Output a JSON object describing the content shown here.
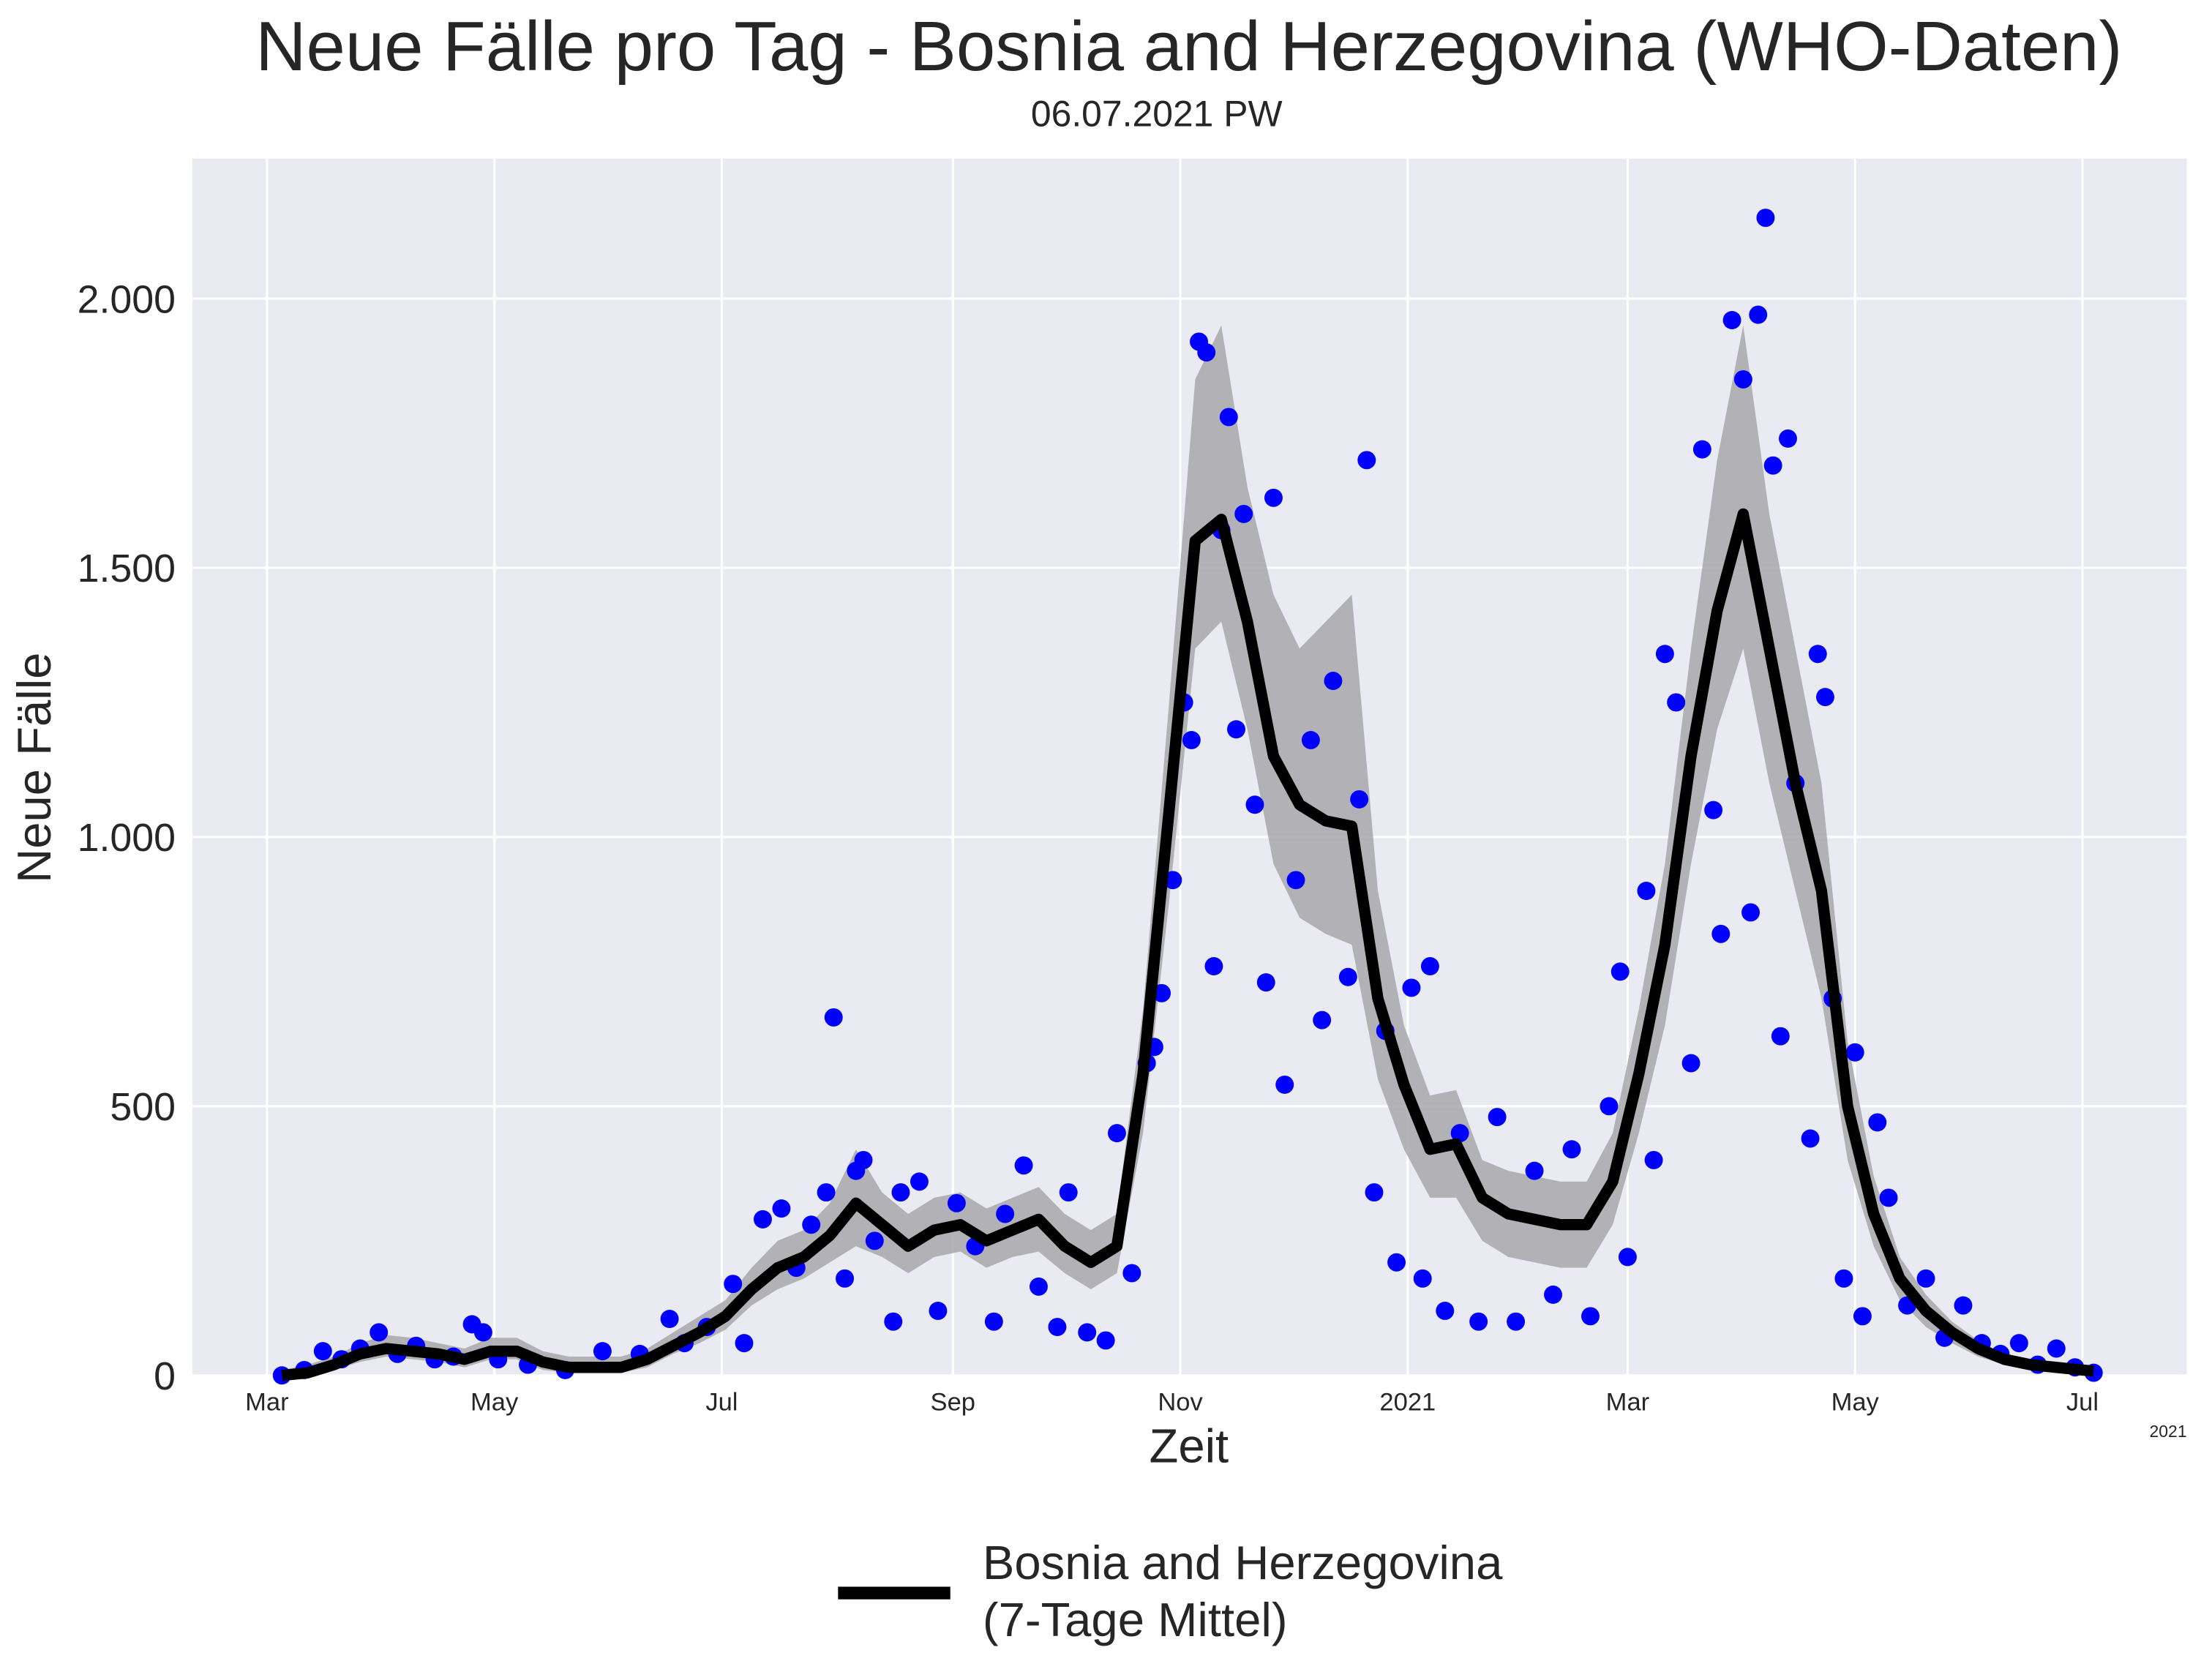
{
  "chart_data": {
    "type": "line",
    "title": "Neue Fälle pro Tag - Bosnia and Herzegovina (WHO-Daten)",
    "subtitle": "06.07.2021 PW",
    "x_label": "Zeit",
    "y_label": "Neue Fälle",
    "x_offset_label": "2021",
    "xlim": [
      -20,
      515
    ],
    "ylim": [
      0,
      2260
    ],
    "xticks": [
      {
        "value": 0,
        "label": "Mar"
      },
      {
        "value": 61,
        "label": "May"
      },
      {
        "value": 122,
        "label": "Jul"
      },
      {
        "value": 184,
        "label": "Sep"
      },
      {
        "value": 245,
        "label": "Nov"
      },
      {
        "value": 306,
        "label": "2021"
      },
      {
        "value": 365,
        "label": "Mar"
      },
      {
        "value": 426,
        "label": "May"
      },
      {
        "value": 487,
        "label": "Jul"
      }
    ],
    "yticks": [
      0,
      500,
      {
        "value": 1000,
        "label": "1.000"
      },
      {
        "value": 1500,
        "label": "1.500"
      },
      {
        "value": 2000,
        "label": "2.000"
      }
    ],
    "grid": true,
    "background": "#eaeaf2",
    "legend_position": "bottom",
    "x": [
      4,
      11,
      18,
      25,
      32,
      39,
      46,
      53,
      60,
      67,
      74,
      81,
      88,
      95,
      102,
      109,
      116,
      123,
      130,
      137,
      144,
      151,
      158,
      165,
      172,
      179,
      186,
      193,
      200,
      207,
      214,
      221,
      228,
      235,
      242,
      249,
      256,
      263,
      270,
      277,
      284,
      291,
      298,
      305,
      312,
      319,
      326,
      333,
      340,
      347,
      354,
      361,
      368,
      375,
      382,
      389,
      396,
      403,
      410,
      417,
      424,
      431,
      438,
      445,
      452,
      459,
      466,
      473,
      480,
      487,
      490
    ],
    "series": [
      {
        "name": "Bosnia and Herzegovina\n(7-Tage Mittel)",
        "color": "#000000",
        "values": [
          0,
          5,
          20,
          40,
          50,
          45,
          40,
          30,
          45,
          45,
          25,
          15,
          15,
          15,
          30,
          55,
          80,
          110,
          160,
          200,
          220,
          260,
          320,
          280,
          240,
          270,
          280,
          250,
          270,
          290,
          240,
          210,
          240,
          560,
          1050,
          1550,
          1590,
          1400,
          1150,
          1060,
          1030,
          1020,
          700,
          540,
          420,
          430,
          330,
          300,
          290,
          280,
          280,
          360,
          560,
          800,
          1150,
          1420,
          1600,
          1350,
          1100,
          900,
          500,
          300,
          180,
          120,
          80,
          50,
          30,
          20,
          15,
          10,
          8
        ]
      }
    ],
    "band": {
      "color": "#a8a8ac",
      "lower": [
        0,
        0,
        10,
        25,
        35,
        30,
        25,
        15,
        30,
        30,
        10,
        5,
        5,
        5,
        15,
        40,
        60,
        85,
        130,
        160,
        180,
        210,
        240,
        220,
        190,
        220,
        230,
        200,
        220,
        230,
        190,
        160,
        190,
        450,
        880,
        1350,
        1400,
        1200,
        950,
        850,
        820,
        800,
        550,
        420,
        330,
        330,
        250,
        220,
        210,
        200,
        200,
        280,
        450,
        650,
        950,
        1200,
        1350,
        1100,
        900,
        700,
        400,
        240,
        140,
        90,
        60,
        35,
        20,
        12,
        8,
        5,
        3
      ],
      "upper": [
        10,
        20,
        35,
        60,
        75,
        70,
        60,
        50,
        70,
        70,
        45,
        35,
        35,
        35,
        50,
        80,
        110,
        140,
        200,
        250,
        270,
        320,
        420,
        340,
        300,
        330,
        340,
        310,
        330,
        350,
        300,
        270,
        300,
        680,
        1250,
        1850,
        1950,
        1650,
        1450,
        1350,
        1400,
        1450,
        900,
        650,
        520,
        530,
        400,
        380,
        370,
        360,
        360,
        450,
        680,
        950,
        1350,
        1700,
        1950,
        1600,
        1350,
        1100,
        620,
        370,
        220,
        150,
        100,
        65,
        40,
        28,
        22,
        15,
        12
      ]
    },
    "scatter": {
      "color": "#0000ff",
      "x": [
        4,
        10,
        15,
        20,
        25,
        30,
        35,
        40,
        45,
        50,
        55,
        58,
        62,
        70,
        80,
        90,
        100,
        108,
        112,
        118,
        125,
        128,
        133,
        138,
        142,
        146,
        150,
        152,
        155,
        158,
        160,
        163,
        168,
        170,
        175,
        180,
        185,
        190,
        195,
        198,
        203,
        207,
        212,
        215,
        220,
        225,
        228,
        232,
        236,
        238,
        240,
        243,
        246,
        248,
        250,
        252,
        254,
        256,
        258,
        260,
        262,
        265,
        268,
        270,
        273,
        276,
        280,
        283,
        286,
        290,
        293,
        295,
        297,
        300,
        303,
        307,
        310,
        312,
        316,
        320,
        325,
        330,
        335,
        340,
        345,
        350,
        355,
        360,
        363,
        365,
        370,
        372,
        375,
        378,
        382,
        385,
        388,
        390,
        393,
        396,
        398,
        400,
        402,
        404,
        406,
        408,
        410,
        414,
        416,
        418,
        420,
        423,
        426,
        428,
        432,
        435,
        440,
        445,
        450,
        455,
        460,
        465,
        470,
        475,
        480,
        485,
        490
      ],
      "values": [
        0,
        10,
        45,
        30,
        50,
        80,
        40,
        55,
        30,
        35,
        95,
        80,
        30,
        20,
        10,
        45,
        40,
        105,
        60,
        90,
        170,
        60,
        290,
        310,
        200,
        280,
        340,
        665,
        180,
        380,
        400,
        250,
        100,
        340,
        360,
        120,
        320,
        240,
        100,
        300,
        390,
        165,
        90,
        340,
        80,
        65,
        450,
        190,
        580,
        610,
        710,
        920,
        1250,
        1180,
        1920,
        1900,
        760,
        1570,
        1780,
        1200,
        1600,
        1060,
        730,
        1630,
        540,
        920,
        1180,
        660,
        1290,
        740,
        1070,
        1700,
        340,
        640,
        210,
        720,
        180,
        760,
        120,
        450,
        100,
        480,
        100,
        380,
        150,
        420,
        110,
        500,
        750,
        220,
        900,
        400,
        1340,
        1250,
        580,
        1720,
        1050,
        820,
        1960,
        1850,
        860,
        1970,
        2150,
        1690,
        630,
        1740,
        1100,
        440,
        1340,
        1260,
        700,
        180,
        600,
        110,
        470,
        330,
        130,
        180,
        70,
        130,
        60,
        40,
        60,
        20,
        50,
        15,
        5
      ]
    }
  }
}
